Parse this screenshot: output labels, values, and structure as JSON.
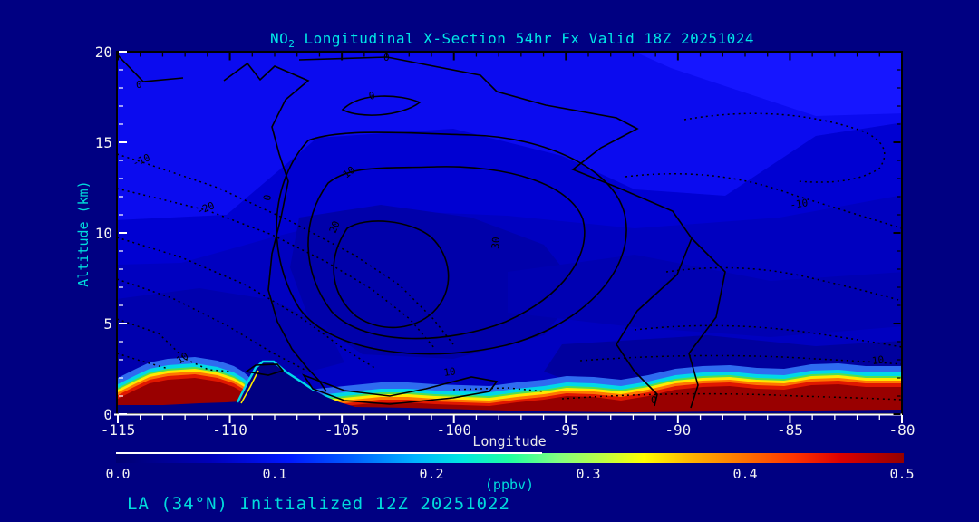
{
  "page": {
    "background": "#000082"
  },
  "title": {
    "prefix": "NO",
    "sub": "2",
    "rest": " Longitudinal X-Section 54hr  Fx Valid 18Z 20251024",
    "color": "#00e6e6"
  },
  "footer": {
    "text": "LA (34°N) Initialized 12Z 20251022",
    "color": "#00dcdc"
  },
  "axes": {
    "x": {
      "label": "Longitude",
      "ticks": [
        "-115",
        "-110",
        "-105",
        "-100",
        "-95",
        "-90",
        "-85",
        "-80"
      ]
    },
    "y": {
      "label": "Altitude (km)",
      "ticks": [
        "20",
        "15",
        "10",
        "5",
        "0"
      ]
    }
  },
  "colorbar": {
    "label": "(ppbv)",
    "ticks": [
      "0.0",
      "0.1",
      "0.2",
      "0.3",
      "0.4",
      "0.5"
    ]
  },
  "contour_labels": [
    {
      "text": "0"
    },
    {
      "text": "0"
    },
    {
      "text": "0"
    },
    {
      "text": "0"
    },
    {
      "text": "10"
    },
    {
      "text": "20"
    },
    {
      "text": "30"
    },
    {
      "text": "10"
    },
    {
      "text": "0"
    },
    {
      "text": "-10"
    },
    {
      "text": "-20"
    },
    {
      "text": "10"
    },
    {
      "text": "-10"
    },
    {
      "text": "-10"
    }
  ],
  "chart_data": {
    "type": "heatmap",
    "subtype": "filled-contour longitudinal cross-section with line-contour overlay",
    "title": "NO2 Longitudinal X-Section 54hr  Fx Valid 18Z 20251024",
    "xlabel": "Longitude",
    "ylabel": "Altitude (km)",
    "xlim": [
      -115,
      -80
    ],
    "ylim": [
      0,
      20
    ],
    "fill_variable": "NO2 concentration",
    "fill_units": "ppbv",
    "fill_range": [
      0.0,
      0.5
    ],
    "colorbar_ticks": [
      0.0,
      0.1,
      0.2,
      0.3,
      0.4,
      0.5
    ],
    "colorbar_colors": [
      "#000070",
      "#0000ff",
      "#00c8f0",
      "#80ff80",
      "#ffff00",
      "#ff7000",
      "#940000"
    ],
    "fill_summary": [
      {
        "region": "free troposphere / stratosphere, 2-20 km",
        "value_ppbv": "0.0-0.1"
      },
      {
        "region": "boundary layer 0-1.5 km, most longitudes",
        "value_ppbv": "0.3-0.5"
      },
      {
        "region": "surface maxima near -113, -104 to -95, -93 to -80",
        "value_ppbv": ">=0.5"
      },
      {
        "region": "elevated terrain ridge near -108 to -106",
        "value_ppbv": "terrain mask"
      }
    ],
    "overlay_contours": {
      "style_positive": "solid",
      "style_negative": "dotted",
      "labeled_levels": [
        -20,
        -10,
        0,
        10,
        20,
        30
      ],
      "max_center": {
        "longitude": -104,
        "altitude_km": 9,
        "level": 30
      }
    },
    "annotations": [
      "LA (34°N) Initialized 12Z 20251022"
    ],
    "forecast_hour": "54hr",
    "valid_time": "18Z 20251024",
    "init_time": "12Z 20251022",
    "station": "LA (34°N)"
  }
}
